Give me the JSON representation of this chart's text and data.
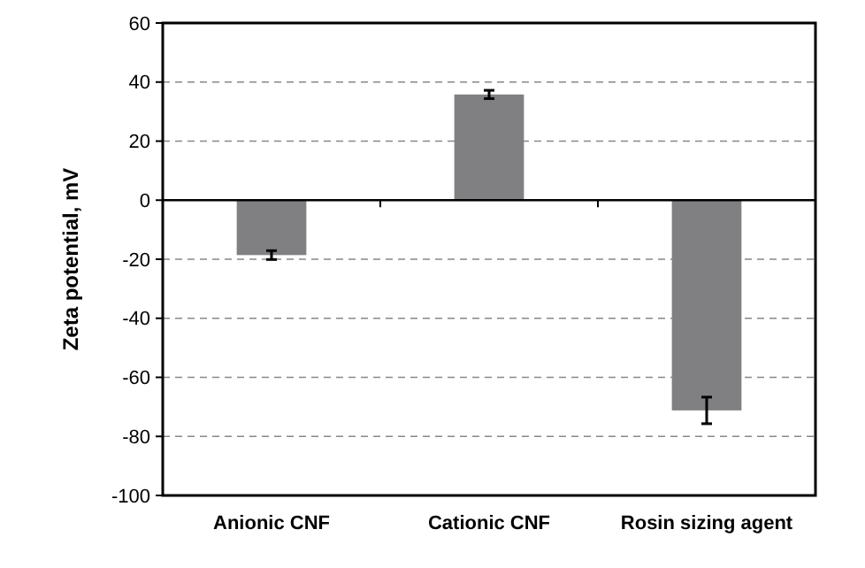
{
  "chart_data": {
    "type": "bar",
    "ylabel": "Zeta potential, mV",
    "categories": [
      "Anionic CNF",
      "Cationic CNF",
      "Rosin sizing agent"
    ],
    "values": [
      -18.6,
      35.8,
      -71.2
    ],
    "errors": [
      1.5,
      1.4,
      4.5
    ],
    "color": "#808083",
    "ylim": [
      -100,
      60
    ],
    "yticks": [
      -100,
      -80,
      -60,
      -40,
      -20,
      0,
      20,
      40,
      60
    ],
    "grid": "y"
  }
}
